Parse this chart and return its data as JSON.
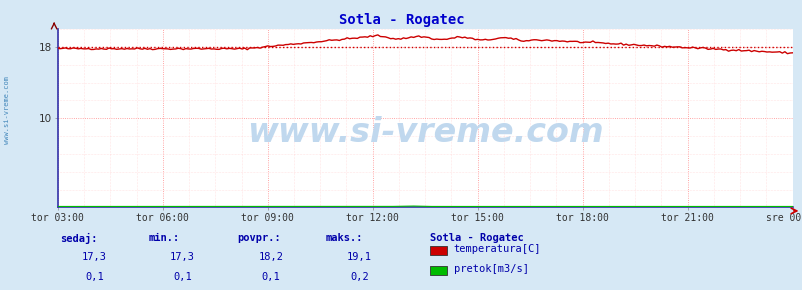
{
  "title": "Sotla - Rogatec",
  "title_color": "#0000cc",
  "bg_color": "#d6e8f5",
  "plot_bg_color": "#ffffff",
  "x_labels": [
    "tor 03:00",
    "tor 06:00",
    "tor 09:00",
    "tor 12:00",
    "tor 15:00",
    "tor 18:00",
    "tor 21:00",
    "sre 00:00"
  ],
  "ylim": [
    0,
    20
  ],
  "yticks": [
    10,
    18
  ],
  "grid_minor_color": "#ffcccc",
  "grid_major_color": "#ff8888",
  "avg_line_value": 18.0,
  "avg_line_color": "#cc0000",
  "temp_line_color": "#cc0000",
  "flow_line_color": "#00bb00",
  "axis_color": "#3333aa",
  "watermark_text": "www.si-vreme.com",
  "watermark_color": "#c0d8ee",
  "watermark_fontsize": 24,
  "sidebar_text": "www.si-vreme.com",
  "sidebar_color": "#4488bb",
  "legend_title": "Sotla - Rogatec",
  "legend_title_color": "#0000aa",
  "legend_items": [
    "temperatura[C]",
    "pretok[m3/s]"
  ],
  "legend_colors": [
    "#cc0000",
    "#00bb00"
  ],
  "table_headers": [
    "sedaj:",
    "min.:",
    "povpr.:",
    "maks.:"
  ],
  "table_values_temp": [
    "17,3",
    "17,3",
    "18,2",
    "19,1"
  ],
  "table_values_flow": [
    "0,1",
    "0,1",
    "0,1",
    "0,2"
  ],
  "table_color": "#0000aa",
  "n_points": 288,
  "temp_peak": 19.1,
  "temp_min": 17.3,
  "flow_base": 0.1
}
